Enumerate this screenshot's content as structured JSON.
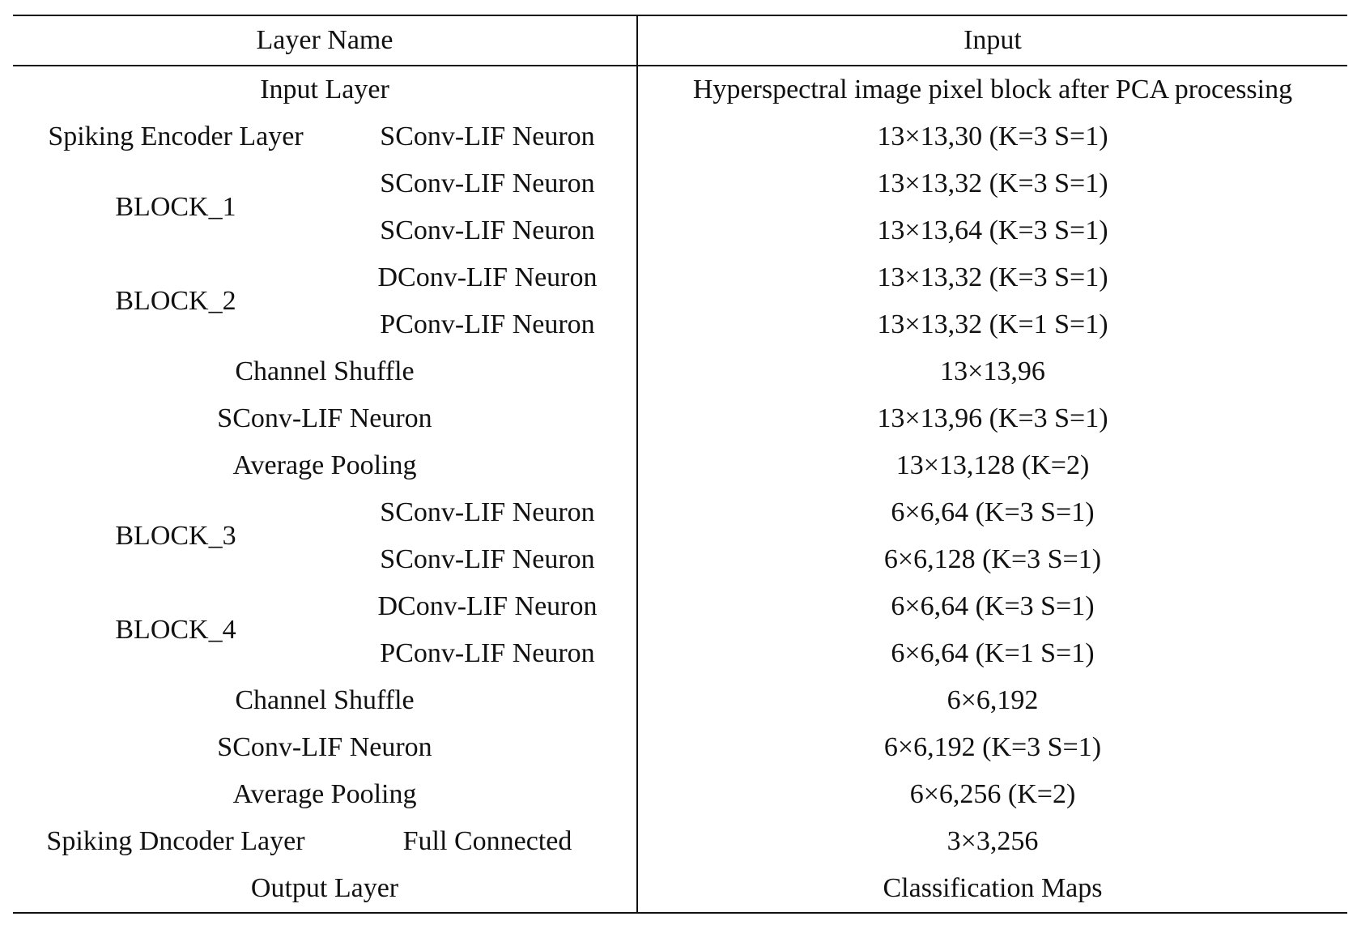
{
  "table": {
    "headers": {
      "layer_name": "Layer Name",
      "input": "Input"
    },
    "rows": {
      "input_layer": {
        "name": "Input Layer",
        "input": "Hyperspectral image pixel block after PCA processing"
      },
      "encoder": {
        "group": "Spiking Encoder Layer",
        "sub": "SConv-LIF Neuron",
        "input": "13×13,30 (K=3 S=1)"
      },
      "block1": {
        "group": "BLOCK_1",
        "r1": {
          "sub": "SConv-LIF Neuron",
          "input": "13×13,32 (K=3 S=1)"
        },
        "r2": {
          "sub": "SConv-LIF Neuron",
          "input": "13×13,64 (K=3 S=1)"
        }
      },
      "block2": {
        "group": "BLOCK_2",
        "r1": {
          "sub": "DConv-LIF Neuron",
          "input": "13×13,32 (K=3 S=1)"
        },
        "r2": {
          "sub": "PConv-LIF Neuron",
          "input": "13×13,32 (K=1 S=1)"
        }
      },
      "shuffle1": {
        "name": "Channel Shuffle",
        "input": "13×13,96"
      },
      "sconv1": {
        "name": "SConv-LIF Neuron",
        "input": "13×13,96 (K=3 S=1)"
      },
      "pool1": {
        "name": "Average Pooling",
        "input": "13×13,128 (K=2)"
      },
      "block3": {
        "group": "BLOCK_3",
        "r1": {
          "sub": "SConv-LIF Neuron",
          "input": "6×6,64 (K=3 S=1)"
        },
        "r2": {
          "sub": "SConv-LIF Neuron",
          "input": "6×6,128 (K=3 S=1)"
        }
      },
      "block4": {
        "group": "BLOCK_4",
        "r1": {
          "sub": "DConv-LIF Neuron",
          "input": "6×6,64 (K=3 S=1)"
        },
        "r2": {
          "sub": "PConv-LIF Neuron",
          "input": "6×6,64 (K=1 S=1)"
        }
      },
      "shuffle2": {
        "name": "Channel Shuffle",
        "input": "6×6,192"
      },
      "sconv2": {
        "name": "SConv-LIF Neuron",
        "input": "6×6,192 (K=3 S=1)"
      },
      "pool2": {
        "name": "Average Pooling",
        "input": "6×6,256 (K=2)"
      },
      "decoder": {
        "group": "Spiking Dncoder Layer",
        "sub": "Full Connected",
        "input": "3×3,256"
      },
      "output_layer": {
        "name": "Output Layer",
        "input": "Classification Maps"
      }
    }
  }
}
